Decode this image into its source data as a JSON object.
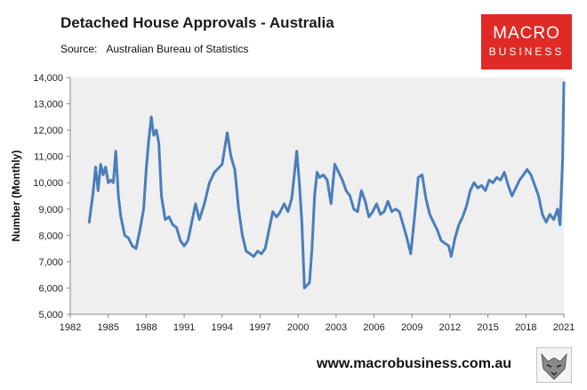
{
  "header": {
    "title": "Detached House Approvals - Australia",
    "source_label": "Source:",
    "source_value": "Australian Bureau of Statistics"
  },
  "logo": {
    "line1": "MACRO",
    "line2": "BUSINESS"
  },
  "footer": {
    "website": "www.macrobusiness.com.au"
  },
  "colors": {
    "line": "#4a7ebb",
    "plot_bg": "#efefef",
    "logo_bg": "#e02a25"
  },
  "icons": {
    "wolf": "wolf-logo-icon"
  },
  "chart_data": {
    "type": "line",
    "title": "Detached House Approvals - Australia",
    "xlabel": "",
    "ylabel": "Number (Monthly)",
    "xlim": [
      1982,
      2021
    ],
    "ylim": [
      5000,
      14000
    ],
    "x_ticks": [
      1982,
      1985,
      1988,
      1991,
      1994,
      1997,
      2000,
      2003,
      2006,
      2009,
      2012,
      2015,
      2018,
      2021
    ],
    "y_ticks": [
      5000,
      6000,
      7000,
      8000,
      9000,
      10000,
      11000,
      12000,
      13000,
      14000
    ],
    "y_tick_labels": [
      "5,000",
      "6,000",
      "7,000",
      "8,000",
      "9,000",
      "10,000",
      "11,000",
      "12,000",
      "13,000",
      "14,000"
    ],
    "grid": false,
    "legend": "none",
    "series": [
      {
        "x": [
          1983.5,
          1983.8,
          1984.0,
          1984.2,
          1984.4,
          1984.6,
          1984.8,
          1985.0,
          1985.2,
          1985.4,
          1985.6,
          1985.8,
          1986.0,
          1986.3,
          1986.6,
          1986.9,
          1987.2,
          1987.5,
          1987.8,
          1988.0,
          1988.2,
          1988.4,
          1988.6,
          1988.8,
          1989.0,
          1989.2,
          1989.5,
          1989.8,
          1990.1,
          1990.4,
          1990.7,
          1991.0,
          1991.3,
          1991.6,
          1991.9,
          1992.2,
          1992.6,
          1993.0,
          1993.4,
          1993.8,
          1994.0,
          1994.2,
          1994.4,
          1994.7,
          1995.0,
          1995.3,
          1995.6,
          1995.9,
          1996.2,
          1996.5,
          1996.8,
          1997.1,
          1997.4,
          1997.7,
          1998.0,
          1998.3,
          1998.6,
          1998.9,
          1999.2,
          1999.5,
          1999.7,
          1999.9,
          2000.1,
          2000.3,
          2000.5,
          2000.7,
          2000.9,
          2001.1,
          2001.3,
          2001.5,
          2001.7,
          2002.0,
          2002.3,
          2002.6,
          2002.9,
          2003.2,
          2003.5,
          2003.8,
          2004.1,
          2004.4,
          2004.7,
          2005.0,
          2005.3,
          2005.6,
          2005.9,
          2006.2,
          2006.5,
          2006.8,
          2007.1,
          2007.4,
          2007.7,
          2008.0,
          2008.3,
          2008.6,
          2008.9,
          2009.2,
          2009.5,
          2009.8,
          2010.1,
          2010.4,
          2010.7,
          2011.0,
          2011.3,
          2011.6,
          2011.9,
          2012.1,
          2012.4,
          2012.7,
          2013.0,
          2013.3,
          2013.6,
          2013.9,
          2014.2,
          2014.5,
          2014.8,
          2015.1,
          2015.4,
          2015.7,
          2016.0,
          2016.3,
          2016.6,
          2016.9,
          2017.2,
          2017.5,
          2017.8,
          2018.1,
          2018.4,
          2018.7,
          2019.0,
          2019.3,
          2019.6,
          2019.9,
          2020.2,
          2020.5,
          2020.7,
          2020.9,
          2021.0
        ],
        "values": [
          8500,
          9600,
          10600,
          9700,
          10700,
          10300,
          10600,
          10000,
          10100,
          10000,
          11200,
          9500,
          8700,
          8000,
          7900,
          7600,
          7500,
          8200,
          9000,
          10500,
          11600,
          12500,
          11800,
          12000,
          11500,
          9500,
          8600,
          8700,
          8400,
          8300,
          7800,
          7600,
          7800,
          8500,
          9200,
          8600,
          9200,
          10000,
          10400,
          10600,
          10700,
          11300,
          11900,
          11000,
          10500,
          9000,
          8000,
          7400,
          7300,
          7200,
          7400,
          7300,
          7500,
          8200,
          8900,
          8700,
          8900,
          9200,
          8900,
          9400,
          10300,
          11200,
          10000,
          8500,
          6000,
          6100,
          6200,
          7500,
          9500,
          10400,
          10200,
          10300,
          10100,
          9200,
          10700,
          10400,
          10100,
          9700,
          9500,
          9000,
          8900,
          9700,
          9300,
          8700,
          8900,
          9200,
          8800,
          8900,
          9300,
          8900,
          9000,
          8900,
          8400,
          7900,
          7300,
          8700,
          10200,
          10300,
          9400,
          8800,
          8500,
          8200,
          7800,
          7700,
          7600,
          7200,
          7900,
          8400,
          8700,
          9100,
          9700,
          10000,
          9800,
          9900,
          9700,
          10100,
          10000,
          10200,
          10100,
          10400,
          9900,
          9500,
          9800,
          10100,
          10300,
          10500,
          10300,
          9900,
          9500,
          8800,
          8500,
          8800,
          8600,
          9000,
          8400,
          10900,
          13800
        ]
      }
    ]
  }
}
